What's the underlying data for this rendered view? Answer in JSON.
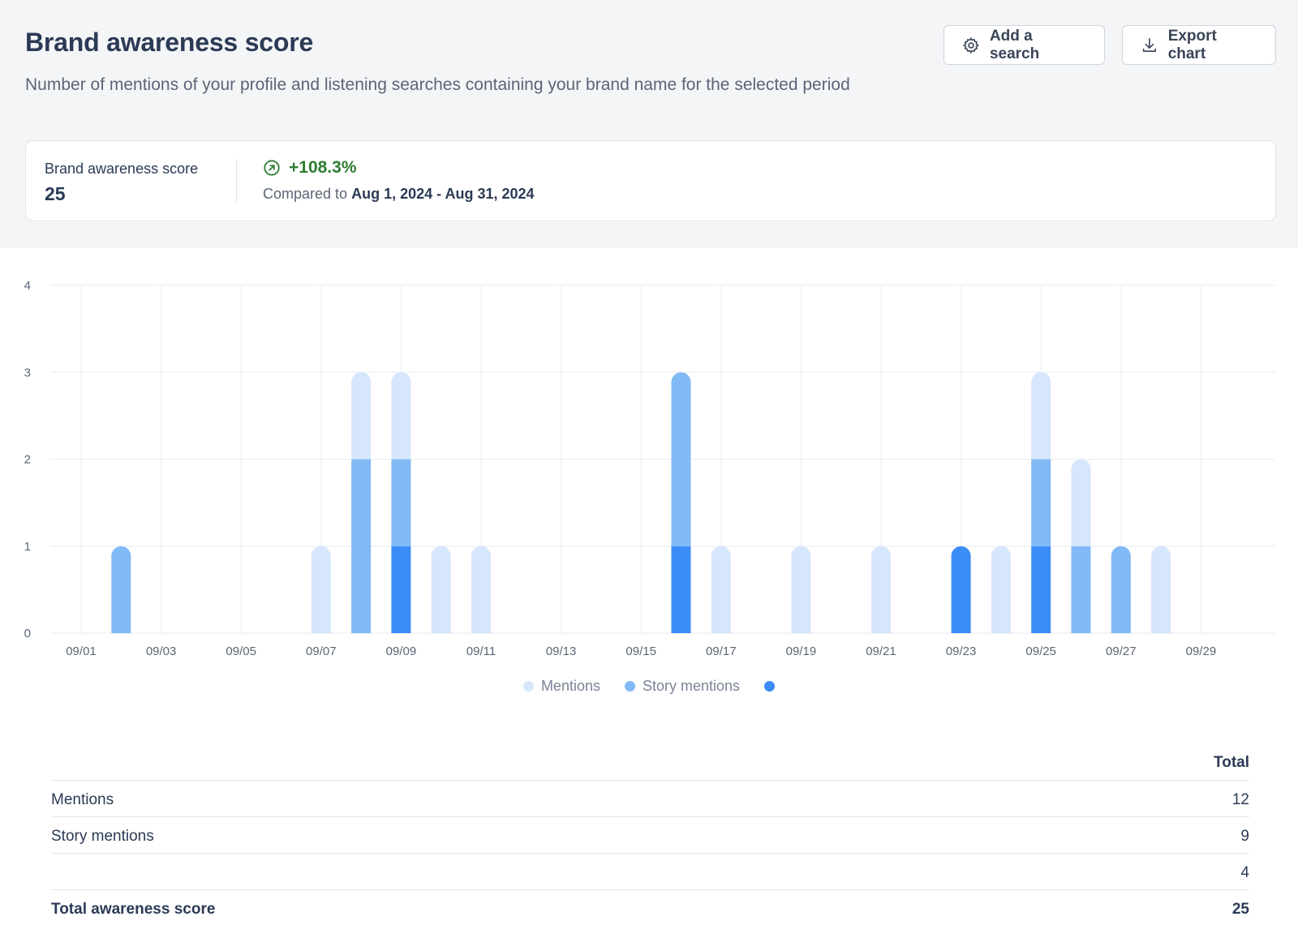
{
  "header": {
    "title": "Brand awareness score",
    "subtitle": "Number of mentions of your profile and listening searches containing your brand name for the selected period",
    "add_search_label": "Add a search",
    "export_label": "Export chart"
  },
  "summary": {
    "label": "Brand awareness score",
    "value": "25",
    "change": "+108.3%",
    "change_color": "#2e7d32",
    "compared_prefix": "Compared to",
    "compared_range": "Aug 1, 2024 - Aug 31, 2024"
  },
  "colors": {
    "mentions": "#d6e6fc",
    "story_mentions": "#82b9f7",
    "third": "#3c8cf6",
    "grid": "#eceef2"
  },
  "chart_data": {
    "type": "bar",
    "stacked": true,
    "x": [
      "09/01",
      "09/02",
      "09/03",
      "09/04",
      "09/05",
      "09/06",
      "09/07",
      "09/08",
      "09/09",
      "09/10",
      "09/11",
      "09/12",
      "09/13",
      "09/14",
      "09/15",
      "09/16",
      "09/17",
      "09/18",
      "09/19",
      "09/20",
      "09/21",
      "09/22",
      "09/23",
      "09/24",
      "09/25",
      "09/26",
      "09/27",
      "09/28",
      "09/29",
      "09/30"
    ],
    "x_tick_labels": [
      "09/01",
      "09/03",
      "09/05",
      "09/07",
      "09/09",
      "09/11",
      "09/13",
      "09/15",
      "09/17",
      "09/19",
      "09/21",
      "09/23",
      "09/25",
      "09/27",
      "09/29"
    ],
    "ylim": [
      0,
      4
    ],
    "y_ticks": [
      0,
      1,
      2,
      3,
      4
    ],
    "grid": true,
    "legend_position": "bottom-center",
    "series": [
      {
        "name": "",
        "values": [
          0,
          0,
          0,
          0,
          0,
          0,
          0,
          0,
          1,
          0,
          0,
          0,
          0,
          0,
          0,
          1,
          0,
          0,
          0,
          0,
          0,
          0,
          1,
          0,
          1,
          0,
          0,
          0,
          0,
          0
        ]
      },
      {
        "name": "Story mentions",
        "values": [
          0,
          1,
          0,
          0,
          0,
          0,
          0,
          2,
          1,
          0,
          0,
          0,
          0,
          0,
          0,
          2,
          0,
          0,
          0,
          0,
          0,
          0,
          0,
          0,
          1,
          1,
          1,
          0,
          0,
          0
        ]
      },
      {
        "name": "Mentions",
        "values": [
          0,
          0,
          0,
          0,
          0,
          0,
          1,
          1,
          1,
          1,
          1,
          0,
          0,
          0,
          0,
          0,
          1,
          0,
          1,
          0,
          1,
          0,
          0,
          1,
          1,
          1,
          0,
          1,
          0,
          0
        ]
      }
    ]
  },
  "legend": {
    "mentions": "Mentions",
    "story_mentions": "Story mentions"
  },
  "table": {
    "header_total": "Total",
    "rows": [
      {
        "name": "Mentions",
        "value": "12"
      },
      {
        "name": "Story mentions",
        "value": "9"
      },
      {
        "name": "",
        "value": "4"
      }
    ],
    "total_row": {
      "name": "Total awareness score",
      "value": "25"
    }
  }
}
